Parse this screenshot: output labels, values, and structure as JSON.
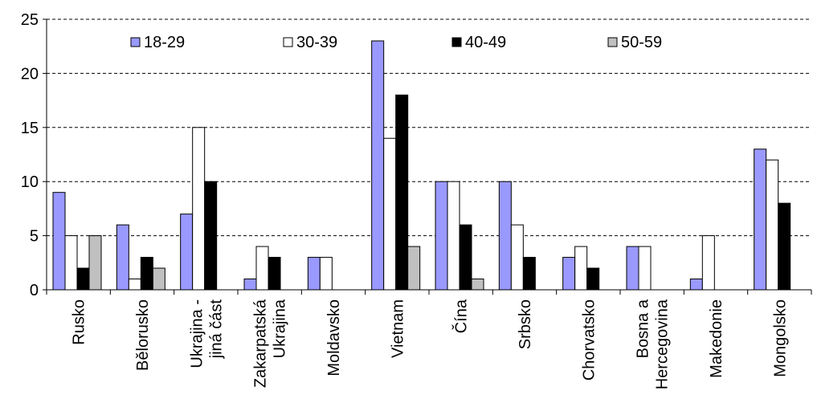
{
  "chart_data": {
    "type": "bar",
    "categories": [
      [
        "Rusko"
      ],
      [
        "Bělorusko"
      ],
      [
        "Ukrajina -",
        "jiná část"
      ],
      [
        "Zakarpatská",
        "Ukrajina"
      ],
      [
        "Moldavsko"
      ],
      [
        "Vietnam"
      ],
      [
        "Čína"
      ],
      [
        "Srbsko"
      ],
      [
        "Chorvatsko"
      ],
      [
        "Bosna a",
        "Hercegovina"
      ],
      [
        "Makedonie"
      ],
      [
        "Mongolsko"
      ]
    ],
    "series": [
      {
        "name": "18-29",
        "color": "#9999ff",
        "values": [
          9,
          6,
          7,
          1,
          3,
          23,
          10,
          10,
          3,
          4,
          1,
          13
        ]
      },
      {
        "name": "30-39",
        "color": "#ffffff",
        "values": [
          5,
          1,
          15,
          4,
          3,
          14,
          10,
          6,
          4,
          4,
          5,
          12
        ]
      },
      {
        "name": "40-49",
        "color": "#000000",
        "values": [
          2,
          3,
          10,
          3,
          0,
          18,
          6,
          3,
          2,
          0,
          0,
          8
        ]
      },
      {
        "name": "50-59",
        "color": "#c0c0c0",
        "values": [
          5,
          2,
          0,
          0,
          0,
          4,
          1,
          0,
          0,
          0,
          0,
          0
        ]
      }
    ],
    "ylim": [
      0,
      25
    ],
    "yticks": [
      0,
      5,
      10,
      15,
      20,
      25
    ],
    "grid": "horizontal-dashed",
    "legend_position": "top"
  }
}
